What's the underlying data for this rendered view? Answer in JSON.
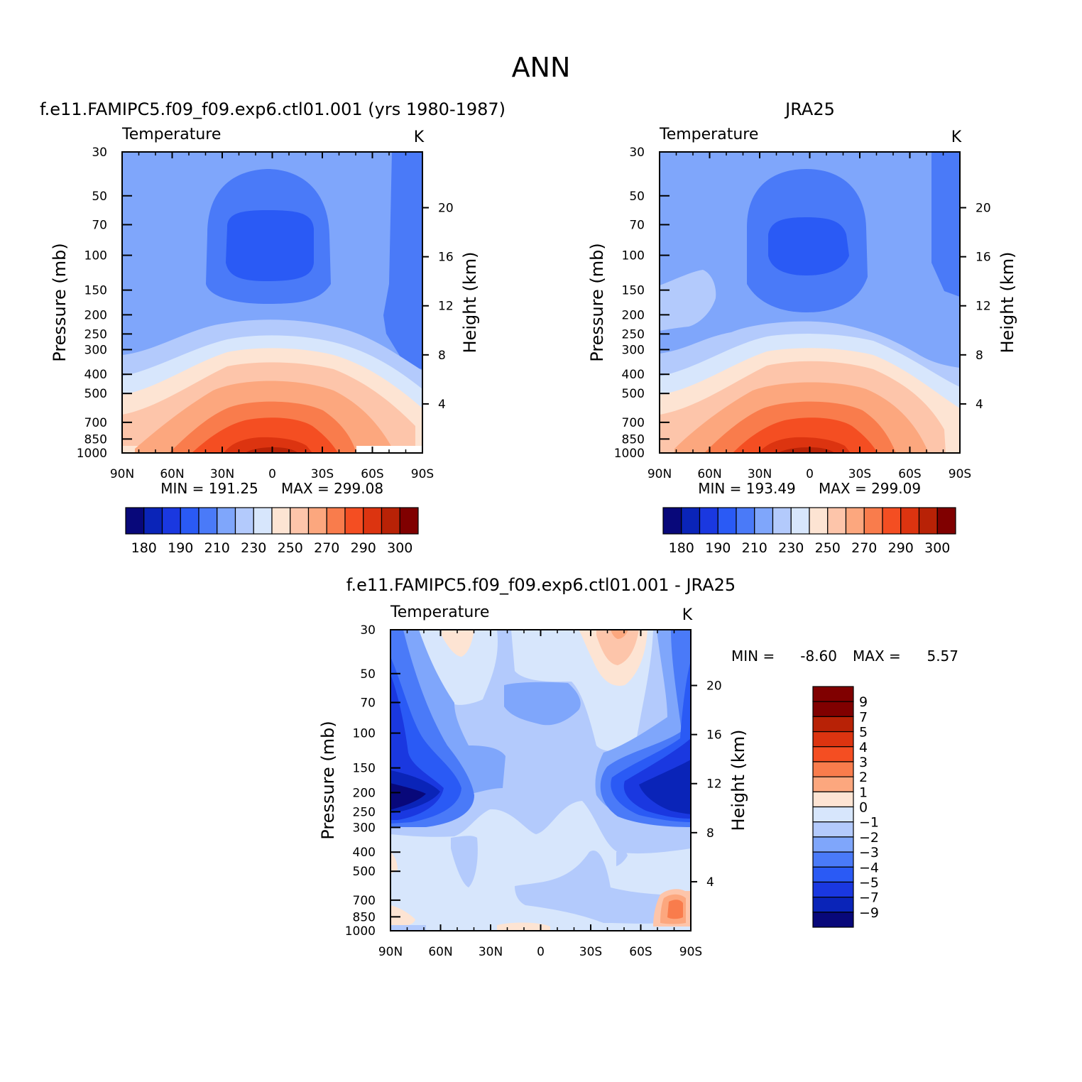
{
  "main_title": "ANN",
  "chart_data": [
    {
      "type": "heatmap",
      "title": "f.e11.FAMIPC5.f09_f09.exp6.ctl01.001 (yrs 1980-1987)",
      "subtitle": "Temperature",
      "units": "K",
      "xlabel": "",
      "ylabel": "Pressure (mb)",
      "y2label": "Height (km)",
      "x_ticks": [
        "90N",
        "60N",
        "30N",
        "0",
        "30S",
        "60S",
        "90S"
      ],
      "y_ticks": [
        "30",
        "50",
        "70",
        "100",
        "150",
        "200",
        "250",
        "300",
        "400",
        "500",
        "700",
        "850",
        "1000"
      ],
      "y2_ticks": [
        "20",
        "16",
        "12",
        "8",
        "4"
      ],
      "ylim": [
        1000,
        30
      ],
      "min_label": "MIN = 191.25",
      "max_label": "MAX = 299.08",
      "min": 191.25,
      "max": 299.08,
      "contour_levels": [
        180,
        185,
        190,
        200,
        210,
        220,
        230,
        240,
        250,
        260,
        270,
        280,
        290,
        295,
        300
      ],
      "colorbar_labels": [
        "180",
        "190",
        "210",
        "230",
        "250",
        "270",
        "290",
        "300"
      ],
      "colorbar_orientation": "horizontal"
    },
    {
      "type": "heatmap",
      "title": "JRA25",
      "subtitle": "Temperature",
      "units": "K",
      "xlabel": "",
      "ylabel": "Pressure (mb)",
      "y2label": "Height (km)",
      "x_ticks": [
        "90N",
        "60N",
        "30N",
        "0",
        "30S",
        "60S",
        "90S"
      ],
      "y_ticks": [
        "30",
        "50",
        "70",
        "100",
        "150",
        "200",
        "250",
        "300",
        "400",
        "500",
        "700",
        "850",
        "1000"
      ],
      "y2_ticks": [
        "20",
        "16",
        "12",
        "8",
        "4"
      ],
      "ylim": [
        1000,
        30
      ],
      "min_label": "MIN = 193.49",
      "max_label": "MAX = 299.09",
      "min": 193.49,
      "max": 299.09,
      "contour_levels": [
        180,
        185,
        190,
        200,
        210,
        220,
        230,
        240,
        250,
        260,
        270,
        280,
        290,
        295,
        300
      ],
      "colorbar_labels": [
        "180",
        "190",
        "210",
        "230",
        "250",
        "270",
        "290",
        "300"
      ],
      "colorbar_orientation": "horizontal"
    },
    {
      "type": "heatmap",
      "title": "f.e11.FAMIPC5.f09_f09.exp6.ctl01.001 - JRA25",
      "subtitle": "Temperature",
      "units": "K",
      "xlabel": "",
      "ylabel": "Pressure (mb)",
      "y2label": "Height (km)",
      "x_ticks": [
        "90N",
        "60N",
        "30N",
        "0",
        "30S",
        "60S",
        "90S"
      ],
      "y_ticks": [
        "30",
        "50",
        "70",
        "100",
        "150",
        "200",
        "250",
        "300",
        "400",
        "500",
        "700",
        "850",
        "1000"
      ],
      "y2_ticks": [
        "20",
        "16",
        "12",
        "8",
        "4"
      ],
      "ylim": [
        1000,
        30
      ],
      "min_label": "MIN =",
      "min_value": "-8.60",
      "max_label": "MAX =",
      "max_value": "5.57",
      "min": -8.6,
      "max": 5.57,
      "contour_levels": [
        -9,
        -7,
        -5,
        -4,
        -3,
        -2,
        -1,
        0,
        1,
        2,
        3,
        4,
        5,
        7,
        9
      ],
      "colorbar_labels": [
        "9",
        "7",
        "5",
        "4",
        "3",
        "2",
        "1",
        "0",
        "-1",
        "-2",
        "-3",
        "-4",
        "-5",
        "-7",
        "-9"
      ],
      "colorbar_orientation": "vertical"
    }
  ],
  "colors": {
    "sequential_palette": [
      "#08087a",
      "#0a24b8",
      "#1a38e0",
      "#2a5af5",
      "#4a7af8",
      "#7fa6fb",
      "#b3cafc",
      "#d7e6fc",
      "#fde4d3",
      "#fdc5aa",
      "#fca77e",
      "#f97c4c",
      "#f44e22",
      "#dc3410",
      "#b82206",
      "#800000"
    ],
    "diff_palette": [
      "#800000",
      "#b82206",
      "#dc3410",
      "#f44e22",
      "#f97c4c",
      "#fca77e",
      "#fde4d3",
      "#d7e6fc",
      "#b3cafc",
      "#7fa6fb",
      "#4a7af8",
      "#2a5af5",
      "#1a38e0",
      "#0a24b8",
      "#08087a"
    ]
  }
}
